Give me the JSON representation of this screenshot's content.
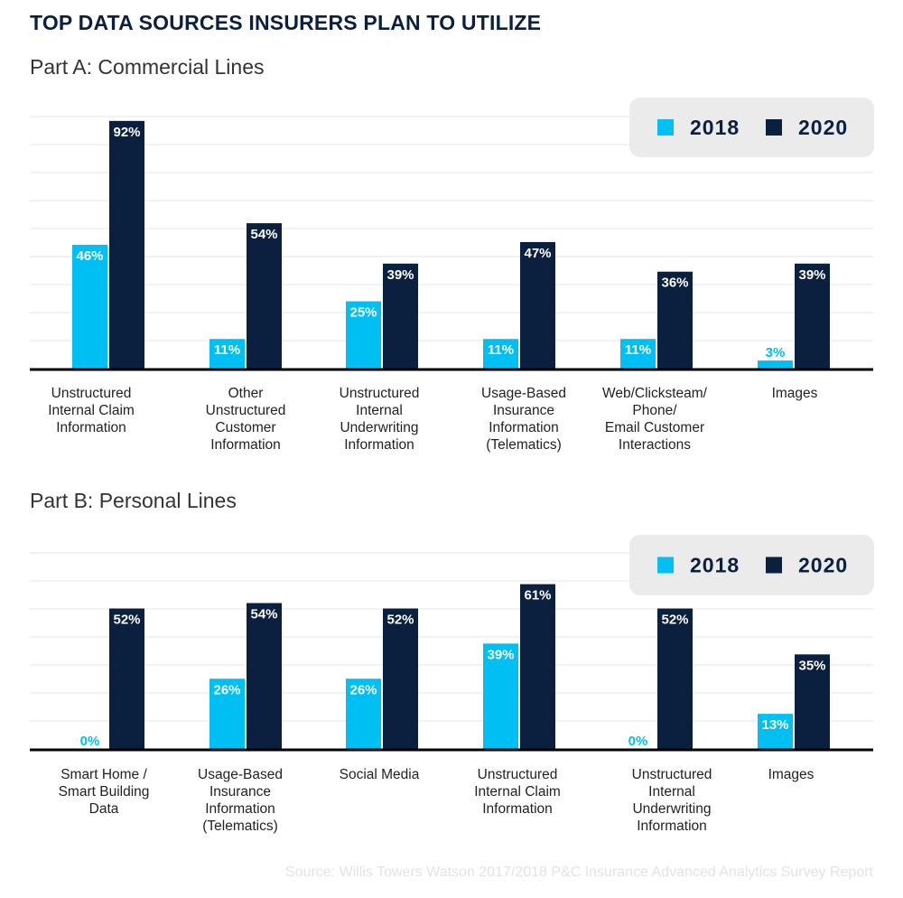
{
  "title": "TOP DATA SOURCES INSURERS PLAN TO UTILIZE",
  "source": "Source:  Willis Towers Watson 2017/2018 P&C Insurance Advanced Analytics Survey Report",
  "colors": {
    "s2018": "#00bff3",
    "s2020": "#0b1f3f",
    "legend_bg": "#ebebeb",
    "grid": "#e6e6e6",
    "axis": "#000000"
  },
  "chart_data": [
    {
      "type": "bar",
      "title": "Part A: Commercial Lines",
      "legend_position": "top-right",
      "grid": true,
      "ylim": [
        0,
        100
      ],
      "categories": [
        [
          "Unstructured",
          "Internal Claim",
          "Information"
        ],
        [
          "Other",
          "Unstructured",
          "Customer",
          "Information"
        ],
        [
          "Unstructured",
          "Internal",
          "Underwriting",
          "Information"
        ],
        [
          "Usage-Based",
          "Insurance",
          "Information",
          "(Telematics)"
        ],
        [
          "Web/Clicksteam/",
          "Phone/",
          "Email Customer",
          "Interactions"
        ],
        [
          "Images"
        ]
      ],
      "series": [
        {
          "name": "2018",
          "values": [
            46,
            11,
            25,
            11,
            11,
            3
          ],
          "labels": [
            "46%",
            "11%",
            "25%",
            "11%",
            "11%",
            "3%"
          ]
        },
        {
          "name": "2020",
          "values": [
            92,
            54,
            39,
            47,
            36,
            39
          ],
          "labels": [
            "92%",
            "54%",
            "39%",
            "47%",
            "36%",
            "39%"
          ]
        }
      ]
    },
    {
      "type": "bar",
      "title": "Part B:  Personal Lines",
      "legend_position": "top-right",
      "grid": true,
      "ylim": [
        0,
        100
      ],
      "categories": [
        [
          "Smart Home /",
          "Smart Building",
          "Data"
        ],
        [
          "Usage-Based",
          "Insurance",
          "Information",
          "(Telematics)"
        ],
        [
          "Social Media"
        ],
        [
          "Unstructured",
          "Internal Claim",
          "Information"
        ],
        [
          "Unstructured",
          "Internal",
          "Underwriting",
          "Information"
        ],
        [
          "Images"
        ]
      ],
      "series": [
        {
          "name": "2018",
          "values": [
            0,
            26,
            26,
            39,
            0,
            13
          ],
          "labels": [
            "0%",
            "26%",
            "26%",
            "39%",
            "0%",
            "13%"
          ]
        },
        {
          "name": "2020",
          "values": [
            52,
            54,
            52,
            61,
            52,
            35
          ],
          "labels": [
            "52%",
            "54%",
            "52%",
            "61%",
            "52%",
            "35%"
          ]
        }
      ]
    }
  ]
}
